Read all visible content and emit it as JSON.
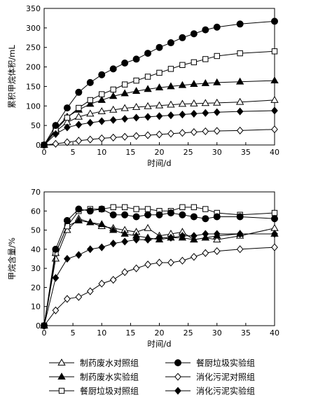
{
  "chart_data": [
    {
      "type": "line",
      "xlabel": "时间/d",
      "ylabel": "累积甲烷体积/mL",
      "xlim": [
        0,
        40
      ],
      "ylim": [
        0,
        350
      ],
      "xticks": [
        0,
        5,
        10,
        15,
        20,
        25,
        30,
        35,
        40
      ],
      "yticks": [
        0,
        50,
        100,
        150,
        200,
        250,
        300,
        350
      ],
      "grid": false,
      "series": [
        {
          "name": "制药废水对照组",
          "marker": "triangle-open",
          "x": [
            0,
            2,
            4,
            6,
            8,
            10,
            12,
            14,
            16,
            18,
            20,
            22,
            24,
            26,
            28,
            30,
            34,
            40
          ],
          "y": [
            0,
            35,
            58,
            72,
            80,
            86,
            90,
            94,
            97,
            99,
            101,
            103,
            105,
            106,
            107,
            108,
            110,
            115
          ]
        },
        {
          "name": "制药废水实验组",
          "marker": "triangle-filled",
          "x": [
            0,
            2,
            4,
            6,
            8,
            10,
            12,
            14,
            16,
            18,
            20,
            22,
            24,
            26,
            28,
            30,
            34,
            40
          ],
          "y": [
            0,
            42,
            72,
            90,
            105,
            115,
            125,
            132,
            138,
            143,
            147,
            150,
            153,
            156,
            158,
            160,
            162,
            165
          ]
        },
        {
          "name": "餐厨垃圾对照组",
          "marker": "square-open",
          "x": [
            0,
            2,
            4,
            6,
            8,
            10,
            12,
            14,
            16,
            18,
            20,
            22,
            24,
            26,
            28,
            30,
            34,
            40
          ],
          "y": [
            0,
            38,
            70,
            95,
            115,
            130,
            142,
            155,
            165,
            175,
            185,
            195,
            205,
            212,
            220,
            228,
            235,
            240
          ]
        },
        {
          "name": "餐厨垃圾实验组",
          "marker": "circle-filled",
          "x": [
            0,
            2,
            4,
            6,
            8,
            10,
            12,
            14,
            16,
            18,
            20,
            22,
            24,
            26,
            28,
            30,
            34,
            40
          ],
          "y": [
            0,
            50,
            95,
            135,
            160,
            180,
            195,
            210,
            220,
            235,
            250,
            262,
            275,
            285,
            295,
            302,
            310,
            317
          ]
        },
        {
          "name": "消化污泥对照组",
          "marker": "diamond-open",
          "x": [
            0,
            2,
            4,
            6,
            8,
            10,
            12,
            14,
            16,
            18,
            20,
            22,
            24,
            26,
            28,
            30,
            34,
            40
          ],
          "y": [
            0,
            3,
            7,
            11,
            14,
            17,
            19,
            21,
            23,
            25,
            27,
            29,
            31,
            33,
            35,
            36,
            37,
            40
          ]
        },
        {
          "name": "消化污泥实验组",
          "marker": "diamond-filled",
          "x": [
            0,
            2,
            4,
            6,
            8,
            10,
            12,
            14,
            16,
            18,
            20,
            22,
            24,
            26,
            28,
            30,
            34,
            40
          ],
          "y": [
            0,
            28,
            45,
            52,
            57,
            61,
            64,
            67,
            70,
            72,
            74,
            76,
            78,
            80,
            82,
            84,
            86,
            88
          ]
        }
      ]
    },
    {
      "type": "line",
      "xlabel": "时间/d",
      "ylabel": "甲烷含量/%",
      "xlim": [
        0,
        40
      ],
      "ylim": [
        0,
        70
      ],
      "xticks": [
        0,
        5,
        10,
        15,
        20,
        25,
        30,
        35,
        40
      ],
      "yticks": [
        0,
        10,
        20,
        30,
        40,
        50,
        60,
        70
      ],
      "grid": false,
      "series": [
        {
          "name": "制药废水对照组",
          "marker": "triangle-open",
          "x": [
            0,
            2,
            4,
            6,
            8,
            10,
            12,
            14,
            16,
            18,
            20,
            22,
            24,
            26,
            28,
            30,
            34,
            40
          ],
          "y": [
            0,
            35,
            50,
            56,
            54,
            52,
            51,
            50,
            49,
            51,
            47,
            48,
            49,
            45,
            46,
            45,
            47,
            51
          ]
        },
        {
          "name": "制药废水实验组",
          "marker": "triangle-filled",
          "x": [
            0,
            2,
            4,
            6,
            8,
            10,
            12,
            14,
            16,
            18,
            20,
            22,
            24,
            26,
            28,
            30,
            34,
            40
          ],
          "y": [
            0,
            38,
            52,
            55,
            54,
            53,
            50,
            48,
            47,
            46,
            45,
            46,
            46,
            45,
            46,
            47,
            48,
            48
          ]
        },
        {
          "name": "餐厨垃圾对照组",
          "marker": "square-open",
          "x": [
            0,
            2,
            4,
            6,
            8,
            10,
            12,
            14,
            16,
            18,
            20,
            22,
            24,
            26,
            28,
            30,
            34,
            40
          ],
          "y": [
            0,
            38,
            52,
            60,
            61,
            61,
            62,
            62,
            61,
            61,
            60,
            60,
            62,
            62,
            61,
            59,
            58,
            59
          ]
        },
        {
          "name": "餐厨垃圾实验组",
          "marker": "circle-filled",
          "x": [
            0,
            2,
            4,
            6,
            8,
            10,
            12,
            14,
            16,
            18,
            20,
            22,
            24,
            26,
            28,
            30,
            34,
            40
          ],
          "y": [
            0,
            40,
            55,
            61,
            60,
            61,
            58,
            58,
            57,
            58,
            58,
            59,
            58,
            57,
            56,
            57,
            57,
            56
          ]
        },
        {
          "name": "消化污泥对照组",
          "marker": "diamond-open",
          "x": [
            0,
            2,
            4,
            6,
            8,
            10,
            12,
            14,
            16,
            18,
            20,
            22,
            24,
            26,
            28,
            30,
            34,
            40
          ],
          "y": [
            0,
            8,
            14,
            15,
            18,
            22,
            24,
            28,
            30,
            32,
            33,
            33,
            34,
            36,
            38,
            39,
            40,
            41
          ]
        },
        {
          "name": "消化污泥实验组",
          "marker": "diamond-filled",
          "x": [
            0,
            2,
            4,
            6,
            8,
            10,
            12,
            14,
            16,
            18,
            20,
            22,
            24,
            26,
            28,
            30,
            34,
            40
          ],
          "y": [
            0,
            25,
            35,
            37,
            40,
            41,
            43,
            44,
            45,
            45,
            46,
            46,
            47,
            47,
            48,
            48,
            48,
            48
          ]
        }
      ]
    }
  ]
}
